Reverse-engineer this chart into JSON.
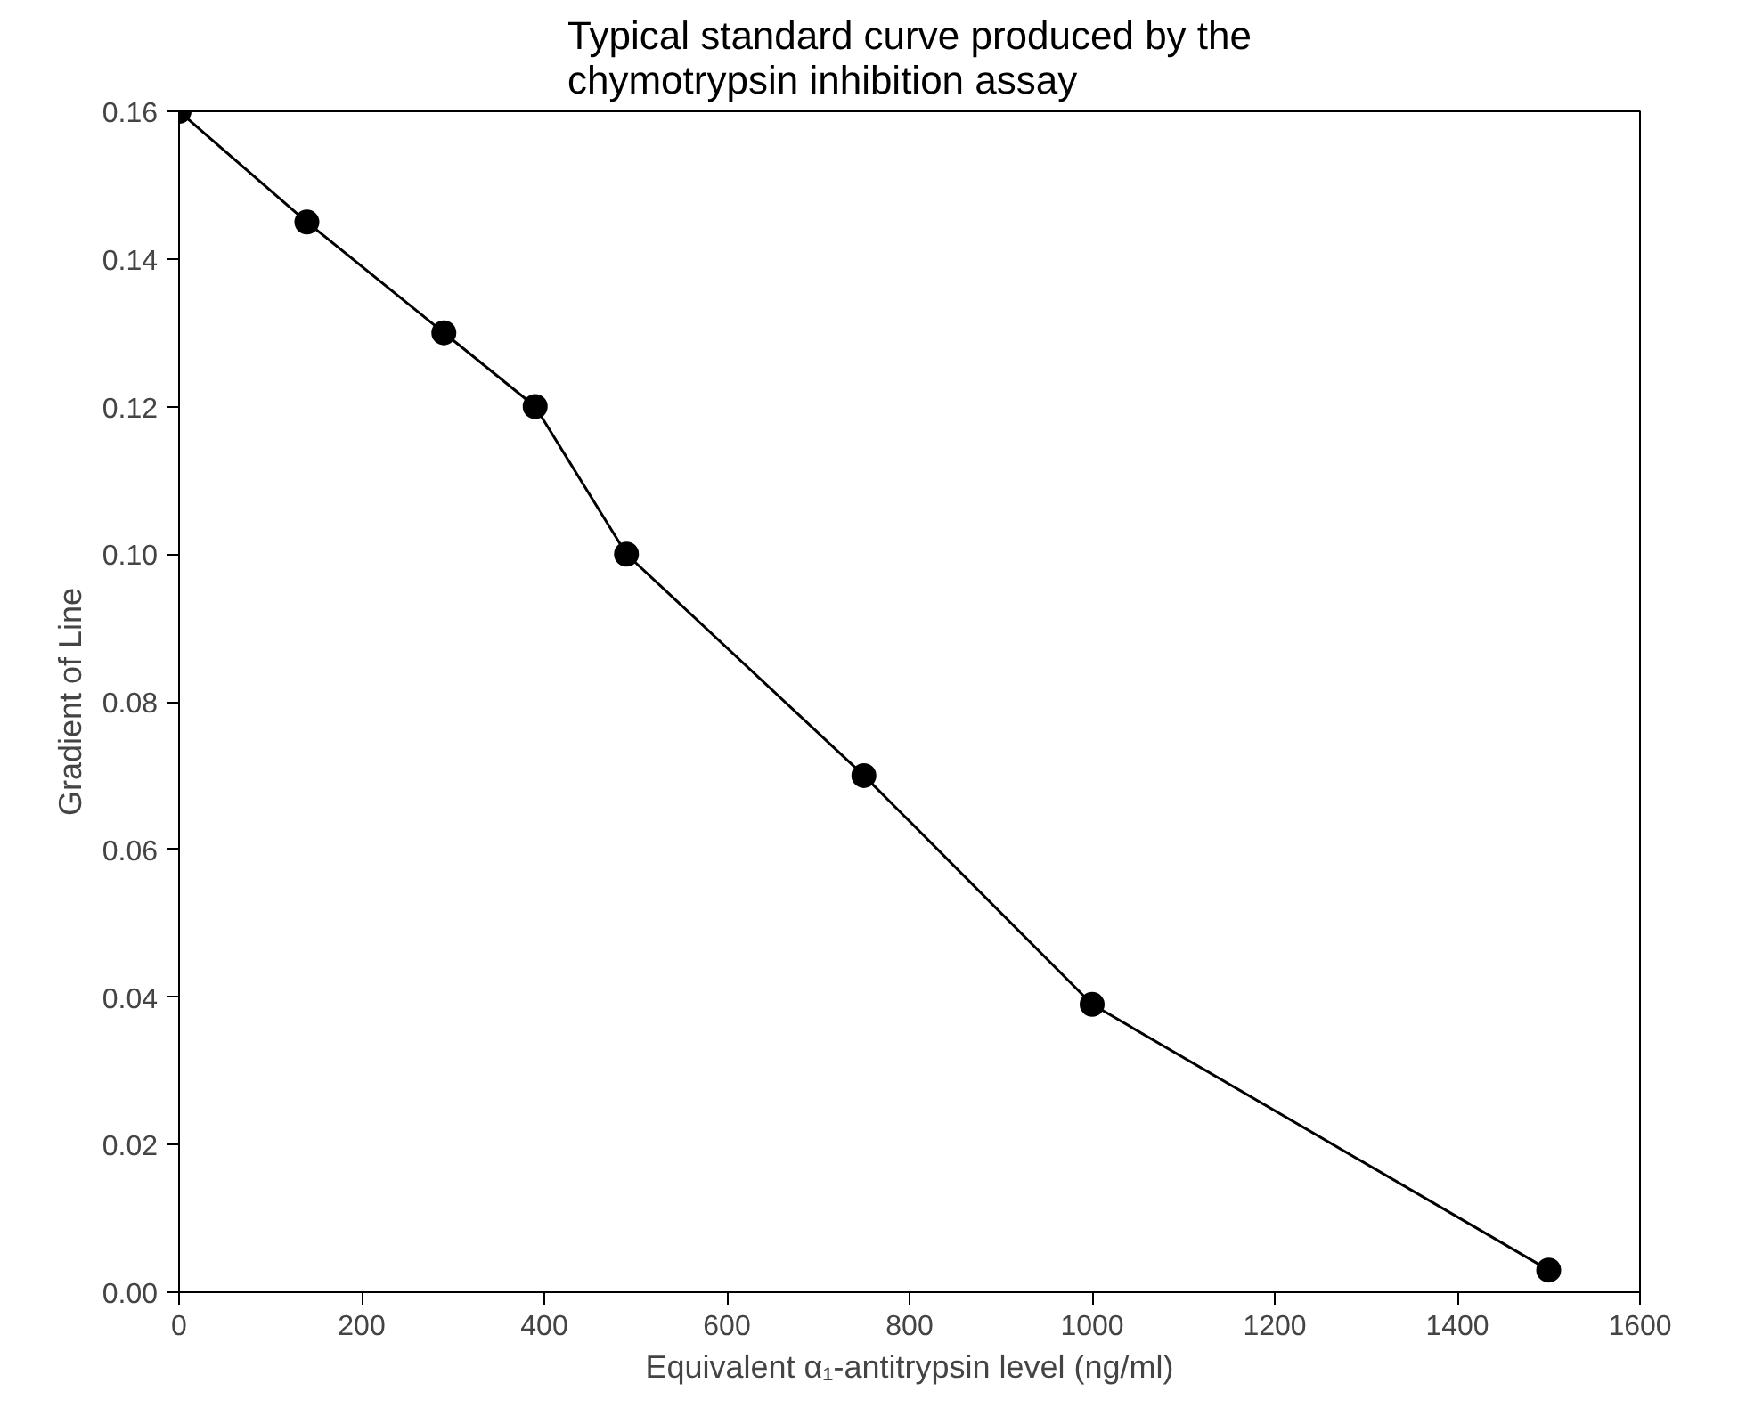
{
  "chart_data": {
    "type": "line",
    "title": "Typical standard curve produced by the\nchymotrypsin inhibition assay",
    "xlabel": "Equivalent α₁-antitrypsin level (ng/ml)",
    "ylabel": "Gradient of Line",
    "x": [
      0,
      140,
      290,
      390,
      490,
      750,
      1000,
      1500
    ],
    "series": [
      {
        "color": "#000000",
        "values": [
          0.16,
          0.145,
          0.13,
          0.12,
          0.1,
          0.07,
          0.039,
          0.003
        ]
      }
    ],
    "xlim": [
      0,
      1600
    ],
    "ylim": [
      0,
      0.16
    ],
    "xticks": [
      0,
      200,
      400,
      600,
      800,
      1000,
      1200,
      1400,
      1600
    ],
    "yticks": [
      {
        "value": 0,
        "label": "0.00"
      },
      {
        "value": 0.02,
        "label": "0.02"
      },
      {
        "value": 0.04,
        "label": "0.04"
      },
      {
        "value": 0.06,
        "label": "0.06"
      },
      {
        "value": 0.08,
        "label": "0.08"
      },
      {
        "value": 0.1,
        "label": "0.10"
      },
      {
        "value": 0.12,
        "label": "0.12"
      },
      {
        "value": 0.14,
        "label": "0.14"
      },
      {
        "value": 0.16,
        "label": "0.16"
      }
    ],
    "grid": false,
    "marker": "circle",
    "line_style": "solid"
  }
}
